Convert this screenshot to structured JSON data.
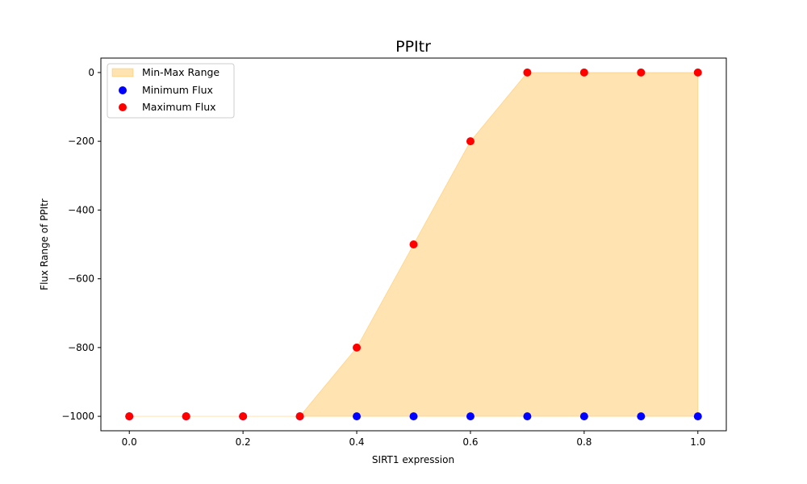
{
  "chart_data": {
    "type": "scatter",
    "title": "PPItr",
    "xlabel": "SIRT1 expression",
    "ylabel": "Flux Range of PPItr",
    "xlim": [
      -0.05,
      1.05
    ],
    "ylim": [
      -1042,
      42
    ],
    "x_ticks": [
      0.0,
      0.2,
      0.4,
      0.6,
      0.8,
      1.0
    ],
    "x_tick_labels": [
      "0.0",
      "0.2",
      "0.4",
      "0.6",
      "0.8",
      "1.0"
    ],
    "y_ticks": [
      0,
      -200,
      -400,
      -600,
      -800,
      -1000
    ],
    "y_tick_labels": [
      "0",
      "−200",
      "−400",
      "−600",
      "−800",
      "−1000"
    ],
    "x": [
      0.0,
      0.1,
      0.2,
      0.3,
      0.4,
      0.5,
      0.6,
      0.7,
      0.8,
      0.9,
      1.0
    ],
    "series": [
      {
        "name": "Min-Max Range",
        "kind": "fill_between",
        "color": "#ffa500",
        "alpha": 0.3
      },
      {
        "name": "Minimum Flux",
        "kind": "points",
        "color": "#0000ff",
        "values": [
          -1000,
          -1000,
          -1000,
          -1000,
          -1000,
          -1000,
          -1000,
          -1000,
          -1000,
          -1000,
          -1000
        ]
      },
      {
        "name": "Maximum Flux",
        "kind": "points",
        "color": "#ff0000",
        "values": [
          -1000,
          -1000,
          -1000,
          -1000,
          -800,
          -500,
          -200,
          0,
          0,
          0,
          0
        ]
      }
    ],
    "legend_position": "top-left",
    "grid": false
  }
}
